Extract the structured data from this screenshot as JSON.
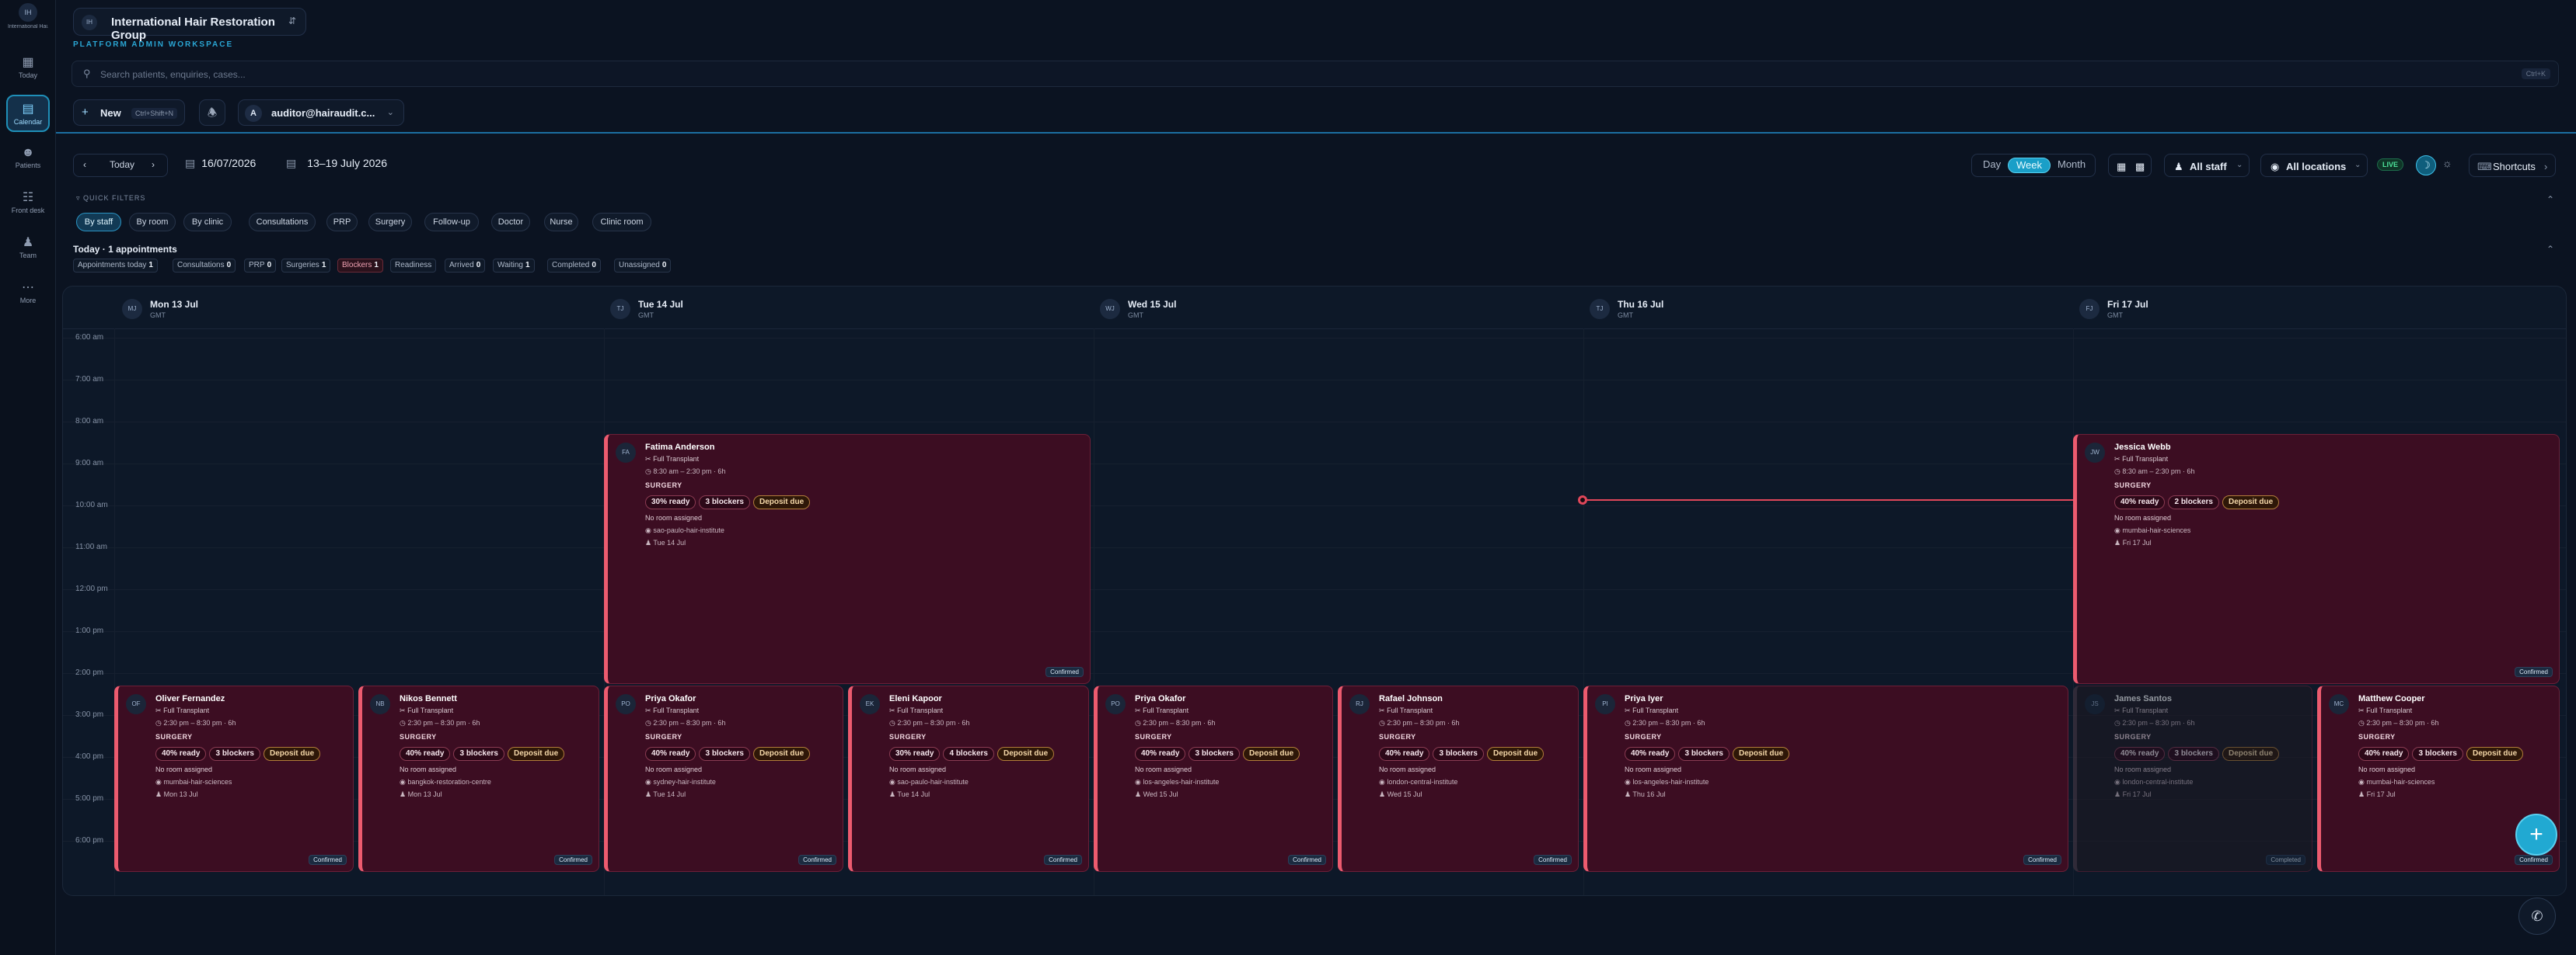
{
  "org": {
    "initials": "IH",
    "name": "International Hair Restoration Group",
    "short": "International Hai..."
  },
  "workspace_label": "PLATFORM ADMIN WORKSPACE",
  "rail": [
    {
      "label": "Today",
      "icon": "dashboard-icon"
    },
    {
      "label": "Calendar",
      "icon": "calendar-icon"
    },
    {
      "label": "Patients",
      "icon": "users-icon"
    },
    {
      "label": "Front desk",
      "icon": "clipboard-icon"
    },
    {
      "label": "Team",
      "icon": "team-icon"
    },
    {
      "label": "More",
      "icon": "more-icon"
    }
  ],
  "search": {
    "placeholder": "Search patients, enquiries, cases...",
    "shortcut": "Ctrl+K"
  },
  "new_button": {
    "label": "New",
    "shortcut": "Ctrl+Shift+N"
  },
  "user": {
    "initial": "A",
    "email": "auditor@hairaudit.c..."
  },
  "toolbar": {
    "today": "Today",
    "date": "16/07/2026",
    "range": "13–19 July 2026",
    "views": [
      "Day",
      "Week",
      "Month"
    ],
    "active_view": "Week",
    "staff": "All staff",
    "locations": "All locations",
    "live": "LIVE",
    "shortcuts": "Shortcuts"
  },
  "quick_filters": {
    "label": "QUICK FILTERS",
    "chips": [
      "By staff",
      "By room",
      "By clinic",
      "Consultations",
      "PRP",
      "Surgery",
      "Follow-up",
      "Doctor",
      "Nurse",
      "Clinic room"
    ],
    "selected": "By staff"
  },
  "today_summary": {
    "title": "Today · 1 appointments",
    "stats": [
      {
        "label": "Appointments today",
        "value": "1"
      },
      {
        "label": "Consultations",
        "value": "0"
      },
      {
        "label": "PRP",
        "value": "0"
      },
      {
        "label": "Surgeries",
        "value": "1"
      },
      {
        "label": "Blockers",
        "value": "1"
      },
      {
        "label": "Readiness",
        "value": ""
      },
      {
        "label": "Arrived",
        "value": "0"
      },
      {
        "label": "Waiting",
        "value": "1"
      },
      {
        "label": "Completed",
        "value": "0"
      },
      {
        "label": "Unassigned",
        "value": "0"
      }
    ]
  },
  "days": [
    {
      "initials": "MJ",
      "label": "Mon 13 Jul",
      "tz": "GMT"
    },
    {
      "initials": "TJ",
      "label": "Tue 14 Jul",
      "tz": "GMT"
    },
    {
      "initials": "WJ",
      "label": "Wed 15 Jul",
      "tz": "GMT"
    },
    {
      "initials": "TJ",
      "label": "Thu 16 Jul",
      "tz": "GMT"
    },
    {
      "initials": "FJ",
      "label": "Fri 17 Jul",
      "tz": "GMT"
    }
  ],
  "hours": [
    "6:00 am",
    "7:00 am",
    "8:00 am",
    "9:00 am",
    "10:00 am",
    "11:00 am",
    "12:00 pm",
    "1:00 pm",
    "2:00 pm",
    "3:00 pm",
    "4:00 pm",
    "5:00 pm",
    "6:00 pm"
  ],
  "appointments": [
    {
      "initials": "FA",
      "name": "Fatima Anderson",
      "type": "Full Transplant",
      "time": "8:30 am – 2:30 pm · 6h",
      "category": "SURGERY",
      "ready": "30% ready",
      "blockers": "3 blockers",
      "deposit": "Deposit due",
      "room": "No room assigned",
      "clinic": "sao-paulo-hair-institute",
      "date": "Tue 14 Jul",
      "status": "Confirmed"
    },
    {
      "initials": "JW",
      "name": "Jessica Webb",
      "type": "Full Transplant",
      "time": "8:30 am – 2:30 pm · 6h",
      "category": "SURGERY",
      "ready": "40% ready",
      "blockers": "2 blockers",
      "deposit": "Deposit due",
      "room": "No room assigned",
      "clinic": "mumbai-hair-sciences",
      "date": "Fri 17 Jul",
      "status": "Confirmed"
    },
    {
      "initials": "OF",
      "name": "Oliver Fernandez",
      "type": "Full Transplant",
      "time": "2:30 pm – 8:30 pm · 6h",
      "category": "SURGERY",
      "ready": "40% ready",
      "blockers": "3 blockers",
      "deposit": "Deposit due",
      "room": "No room assigned",
      "clinic": "mumbai-hair-sciences",
      "date": "Mon 13 Jul",
      "status": "Confirmed"
    },
    {
      "initials": "NB",
      "name": "Nikos Bennett",
      "type": "Full Transplant",
      "time": "2:30 pm – 8:30 pm · 6h",
      "category": "SURGERY",
      "ready": "40% ready",
      "blockers": "3 blockers",
      "deposit": "Deposit due",
      "room": "No room assigned",
      "clinic": "bangkok-restoration-centre",
      "date": "Mon 13 Jul",
      "status": "Confirmed"
    },
    {
      "initials": "PO",
      "name": "Priya Okafor",
      "type": "Full Transplant",
      "time": "2:30 pm – 8:30 pm · 6h",
      "category": "SURGERY",
      "ready": "40% ready",
      "blockers": "3 blockers",
      "deposit": "Deposit due",
      "room": "No room assigned",
      "clinic": "sydney-hair-institute",
      "date": "Tue 14 Jul",
      "status": "Confirmed"
    },
    {
      "initials": "EK",
      "name": "Eleni Kapoor",
      "type": "Full Transplant",
      "time": "2:30 pm – 8:30 pm · 6h",
      "category": "SURGERY",
      "ready": "30% ready",
      "blockers": "4 blockers",
      "deposit": "Deposit due",
      "room": "No room assigned",
      "clinic": "sao-paulo-hair-institute",
      "date": "Tue 14 Jul",
      "status": "Confirmed"
    },
    {
      "initials": "PO",
      "name": "Priya Okafor",
      "type": "Full Transplant",
      "time": "2:30 pm – 8:30 pm · 6h",
      "category": "SURGERY",
      "ready": "40% ready",
      "blockers": "3 blockers",
      "deposit": "Deposit due",
      "room": "No room assigned",
      "clinic": "los-angeles-hair-institute",
      "date": "Wed 15 Jul",
      "status": "Confirmed"
    },
    {
      "initials": "RJ",
      "name": "Rafael Johnson",
      "type": "Full Transplant",
      "time": "2:30 pm – 8:30 pm · 6h",
      "category": "SURGERY",
      "ready": "40% ready",
      "blockers": "3 blockers",
      "deposit": "Deposit due",
      "room": "No room assigned",
      "clinic": "london-central-institute",
      "date": "Wed 15 Jul",
      "status": "Confirmed"
    },
    {
      "initials": "PI",
      "name": "Priya Iyer",
      "type": "Full Transplant",
      "time": "2:30 pm – 8:30 pm · 6h",
      "category": "SURGERY",
      "ready": "40% ready",
      "blockers": "3 blockers",
      "deposit": "Deposit due",
      "room": "No room assigned",
      "clinic": "los-angeles-hair-institute",
      "date": "Thu 16 Jul",
      "status": "Confirmed"
    },
    {
      "initials": "JS",
      "name": "James Santos",
      "type": "Full Transplant",
      "time": "2:30 pm – 8:30 pm · 6h",
      "category": "SURGERY",
      "ready": "40% ready",
      "blockers": "3 blockers",
      "deposit": "Deposit due",
      "room": "No room assigned",
      "clinic": "london-central-institute",
      "date": "Fri 17 Jul",
      "status": "Completed"
    },
    {
      "initials": "MC",
      "name": "Matthew Cooper",
      "type": "Full Transplant",
      "time": "2:30 pm – 8:30 pm · 6h",
      "category": "SURGERY",
      "ready": "40% ready",
      "blockers": "3 blockers",
      "deposit": "Deposit due",
      "room": "No room assigned",
      "clinic": "mumbai-hair-sciences",
      "date": "Fri 17 Jul",
      "status": "Confirmed"
    }
  ],
  "colors": {
    "accent": "#1a9fc8",
    "appointment_bg": "#3c0d22",
    "appointment_border": "#ec5b6f",
    "now_line": "#e0475a",
    "background": "#0b1321"
  }
}
